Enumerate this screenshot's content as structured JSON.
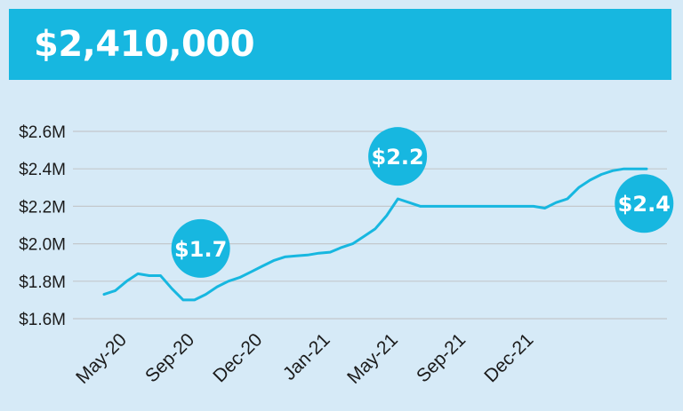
{
  "header": {
    "value": "$2,410,000"
  },
  "colors": {
    "accent": "#17b7e0",
    "background": "#d6eaf7",
    "grid": "#c3c8cc",
    "text": "#1b1b1b"
  },
  "chart_data": {
    "type": "line",
    "title": "",
    "xlabel": "",
    "ylabel": "",
    "ylim": [
      1.6,
      2.6
    ],
    "yticks": [
      {
        "value": 1.6,
        "label": "$1.6M"
      },
      {
        "value": 1.8,
        "label": "$1.8M"
      },
      {
        "value": 2.0,
        "label": "$2.0M"
      },
      {
        "value": 2.2,
        "label": "$2.2M"
      },
      {
        "value": 2.4,
        "label": "$2.4M"
      },
      {
        "value": 2.6,
        "label": "$2.6M"
      }
    ],
    "xticks": [
      {
        "index": 0.5,
        "label": "May-20"
      },
      {
        "index": 6.5,
        "label": "Sep-20"
      },
      {
        "index": 12.5,
        "label": "Dec-20"
      },
      {
        "index": 18.5,
        "label": "Jan-21"
      },
      {
        "index": 24.5,
        "label": "May-21"
      },
      {
        "index": 30.5,
        "label": "Sep-21"
      },
      {
        "index": 36.5,
        "label": "Dec-21"
      }
    ],
    "grid": true,
    "series": [
      {
        "values": [
          1.73,
          1.75,
          1.8,
          1.84,
          1.83,
          1.83,
          1.76,
          1.7,
          1.7,
          1.73,
          1.77,
          1.8,
          1.82,
          1.85,
          1.88,
          1.91,
          1.93,
          1.935,
          1.94,
          1.95,
          1.955,
          1.98,
          2.0,
          2.04,
          2.08,
          2.15,
          2.24,
          2.22,
          2.2,
          2.2,
          2.2,
          2.2,
          2.2,
          2.2,
          2.2,
          2.2,
          2.2,
          2.2,
          2.2,
          2.19,
          2.22,
          2.24,
          2.3,
          2.34,
          2.37,
          2.39,
          2.4,
          2.4,
          2.4
        ]
      }
    ],
    "annotations": [
      {
        "label": "$1.7",
        "near_index": 8
      },
      {
        "label": "$2.2",
        "near_index": 27
      },
      {
        "label": "$2.4",
        "near_index": 47
      }
    ]
  }
}
